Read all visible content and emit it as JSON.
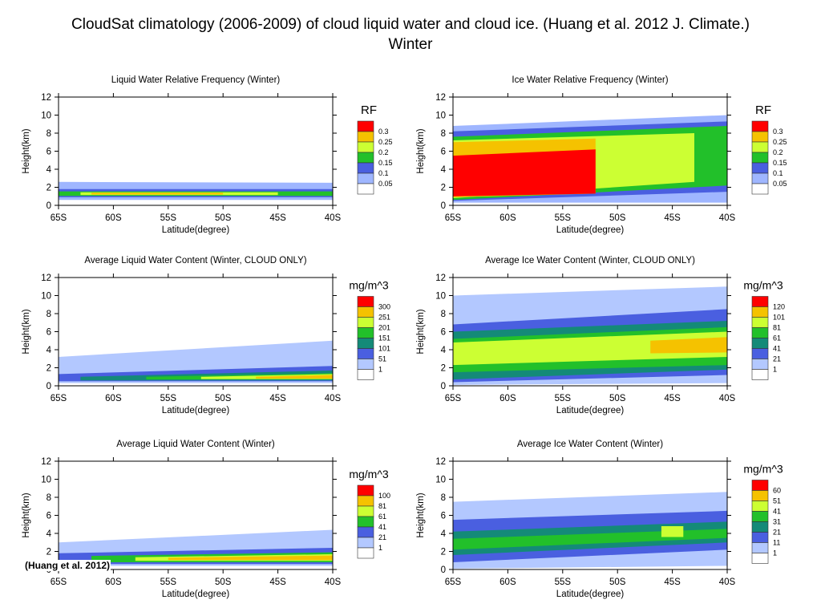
{
  "slide": {
    "title_line1": "CloudSat climatology (2006-2009) of cloud liquid water and cloud ice. (Huang et al. 2012 J. Climate.)",
    "title_line2": "Winter",
    "citation": "(Huang et al. 2012)"
  },
  "chart_data": [
    {
      "type": "heatmap",
      "title": "Liquid Water Relative Frequency (Winter)",
      "xlabel": "Latitude(degree)",
      "ylabel": "Height(km)",
      "x_ticks": [
        "65S",
        "60S",
        "55S",
        "50S",
        "45S",
        "40S"
      ],
      "x_range_deg": [
        -65,
        -40
      ],
      "y_ticks": [
        0,
        2,
        4,
        6,
        8,
        10,
        12
      ],
      "ylim": [
        0,
        12
      ],
      "colorbar": {
        "title": "RF",
        "labels": [
          "0.3",
          "0.25",
          "0.2",
          "0.15",
          "0.1",
          "0.05"
        ],
        "colors": [
          "#ff0000",
          "#f5c200",
          "#ccff33",
          "#22c02a",
          "#4a5fe0",
          "#9fb6ff",
          "#ffffff"
        ]
      },
      "layers": [
        {
          "level": 1,
          "x": [
            -65,
            -40
          ],
          "y0": [
            0.6,
            0.6
          ],
          "y1": [
            2.6,
            2.5
          ]
        },
        {
          "level": 2,
          "x": [
            -65,
            -40
          ],
          "y0": [
            0.9,
            0.9
          ],
          "y1": [
            1.8,
            1.8
          ]
        },
        {
          "level": 3,
          "x": [
            -65,
            -40
          ],
          "y0": [
            1.05,
            1.05
          ],
          "y1": [
            1.55,
            1.55
          ]
        },
        {
          "level": 4,
          "x": [
            -63,
            -45
          ],
          "y0": [
            1.15,
            1.15
          ],
          "y1": [
            1.45,
            1.45
          ]
        },
        {
          "level": 5,
          "x": [
            -62,
            -50
          ],
          "y0": [
            1.2,
            1.2
          ],
          "y1": [
            1.4,
            1.4
          ]
        }
      ]
    },
    {
      "type": "heatmap",
      "title": "Ice Water Relative Frequency (Winter)",
      "xlabel": "Latitude(degree)",
      "ylabel": "Height(km)",
      "x_ticks": [
        "65S",
        "60S",
        "55S",
        "50S",
        "45S",
        "40S"
      ],
      "x_range_deg": [
        -65,
        -40
      ],
      "y_ticks": [
        0,
        2,
        4,
        6,
        8,
        10,
        12
      ],
      "ylim": [
        0,
        12
      ],
      "colorbar": {
        "title": "RF",
        "labels": [
          "0.3",
          "0.25",
          "0.2",
          "0.15",
          "0.1",
          "0.05"
        ],
        "colors": [
          "#ff0000",
          "#f5c200",
          "#ccff33",
          "#22c02a",
          "#4a5fe0",
          "#9fb6ff",
          "#ffffff"
        ]
      },
      "layers": [
        {
          "level": 1,
          "x": [
            -65,
            -40
          ],
          "y0": [
            0.3,
            0.3
          ],
          "y1": [
            8.8,
            10.0
          ]
        },
        {
          "level": 2,
          "x": [
            -65,
            -40
          ],
          "y0": [
            0.5,
            1.5
          ],
          "y1": [
            8.2,
            9.3
          ]
        },
        {
          "level": 3,
          "x": [
            -65,
            -40
          ],
          "y0": [
            0.6,
            2.2
          ],
          "y1": [
            7.6,
            8.8
          ]
        },
        {
          "level": 4,
          "x": [
            -65,
            -43
          ],
          "y0": [
            0.8,
            2.6
          ],
          "y1": [
            7.2,
            8.0
          ]
        },
        {
          "level": 5,
          "x": [
            -65,
            -52
          ],
          "y0": [
            0.9,
            1.3
          ],
          "y1": [
            7.0,
            7.4
          ]
        },
        {
          "level": 6,
          "x": [
            -65,
            -52
          ],
          "y0": [
            1.0,
            1.3
          ],
          "y1": [
            5.5,
            6.2
          ]
        }
      ]
    },
    {
      "type": "heatmap",
      "title": "Average Liquid Water Content (Winter, CLOUD ONLY)",
      "xlabel": "Latitude(degree)",
      "ylabel": "Height(km)",
      "x_ticks": [
        "65S",
        "60S",
        "55S",
        "50S",
        "45S",
        "40S"
      ],
      "x_range_deg": [
        -65,
        -40
      ],
      "y_ticks": [
        0,
        2,
        4,
        6,
        8,
        10,
        12
      ],
      "ylim": [
        0,
        12
      ],
      "colorbar": {
        "title": "mg/m^3",
        "labels": [
          "300",
          "251",
          "201",
          "151",
          "101",
          "51",
          "1"
        ],
        "colors": [
          "#ff0000",
          "#f5c200",
          "#ccff33",
          "#22c02a",
          "#148a78",
          "#4a5fe0",
          "#b3c8ff",
          "#ffffff"
        ]
      },
      "layers": [
        {
          "level": 1,
          "x": [
            -65,
            -40
          ],
          "y0": [
            0.3,
            0.3
          ],
          "y1": [
            3.2,
            5.0
          ]
        },
        {
          "level": 2,
          "x": [
            -65,
            -40
          ],
          "y0": [
            0.5,
            0.5
          ],
          "y1": [
            1.3,
            2.2
          ]
        },
        {
          "level": 3,
          "x": [
            -63,
            -40
          ],
          "y0": [
            0.6,
            0.6
          ],
          "y1": [
            1.0,
            1.7
          ]
        },
        {
          "level": 4,
          "x": [
            -57,
            -40
          ],
          "y0": [
            0.7,
            0.7
          ],
          "y1": [
            1.0,
            1.4
          ]
        },
        {
          "level": 5,
          "x": [
            -52,
            -40
          ],
          "y0": [
            0.75,
            0.75
          ],
          "y1": [
            1.0,
            1.3
          ]
        },
        {
          "level": 6,
          "x": [
            -47,
            -40
          ],
          "y0": [
            0.8,
            0.8
          ],
          "y1": [
            1.0,
            1.2
          ]
        }
      ]
    },
    {
      "type": "heatmap",
      "title": "Average Ice Water Content (Winter, CLOUD ONLY)",
      "xlabel": "Latitude(degree)",
      "ylabel": "Height(km)",
      "x_ticks": [
        "65S",
        "60S",
        "55S",
        "50S",
        "45S",
        "40S"
      ],
      "x_range_deg": [
        -65,
        -40
      ],
      "y_ticks": [
        0,
        2,
        4,
        6,
        8,
        10,
        12
      ],
      "ylim": [
        0,
        12
      ],
      "colorbar": {
        "title": "mg/m^3",
        "labels": [
          "120",
          "101",
          "81",
          "61",
          "41",
          "21",
          "1"
        ],
        "colors": [
          "#ff0000",
          "#f5c200",
          "#ccff33",
          "#22c02a",
          "#148a78",
          "#4a5fe0",
          "#b3c8ff",
          "#ffffff"
        ]
      },
      "layers": [
        {
          "level": 1,
          "x": [
            -65,
            -40
          ],
          "y0": [
            0.1,
            0.3
          ],
          "y1": [
            10.0,
            11.0
          ]
        },
        {
          "level": 2,
          "x": [
            -65,
            -40
          ],
          "y0": [
            0.4,
            1.2
          ],
          "y1": [
            6.8,
            8.5
          ]
        },
        {
          "level": 3,
          "x": [
            -65,
            -40
          ],
          "y0": [
            0.7,
            1.8
          ],
          "y1": [
            6.0,
            7.2
          ]
        },
        {
          "level": 4,
          "x": [
            -65,
            -40
          ],
          "y0": [
            1.5,
            2.3
          ],
          "y1": [
            5.2,
            6.5
          ]
        },
        {
          "level": 5,
          "x": [
            -65,
            -40
          ],
          "y0": [
            2.3,
            3.2
          ],
          "y1": [
            4.8,
            6.0
          ]
        },
        {
          "level": 6,
          "x": [
            -47,
            -40
          ],
          "y0": [
            3.6,
            3.7
          ],
          "y1": [
            5.0,
            5.4
          ]
        }
      ]
    },
    {
      "type": "heatmap",
      "title": "Average Liquid Water Content (Winter)",
      "xlabel": "Latitude(degree)",
      "ylabel": "Height(km)",
      "x_ticks": [
        "65S",
        "60S",
        "55S",
        "50S",
        "45S",
        "40S"
      ],
      "x_range_deg": [
        -65,
        -40
      ],
      "y_ticks": [
        0,
        2,
        4,
        6,
        8,
        10,
        12
      ],
      "ylim": [
        0,
        12
      ],
      "colorbar": {
        "title": "mg/m^3",
        "labels": [
          "100",
          "81",
          "61",
          "41",
          "21",
          "1"
        ],
        "colors": [
          "#ff0000",
          "#f5c200",
          "#ccff33",
          "#22c02a",
          "#4a5fe0",
          "#b3c8ff",
          "#ffffff"
        ]
      },
      "layers": [
        {
          "level": 1,
          "x": [
            -65,
            -40
          ],
          "y0": [
            0.4,
            0.4
          ],
          "y1": [
            3.0,
            4.4
          ]
        },
        {
          "level": 2,
          "x": [
            -65,
            -40
          ],
          "y0": [
            0.6,
            0.6
          ],
          "y1": [
            1.8,
            2.4
          ]
        },
        {
          "level": 3,
          "x": [
            -62,
            -40
          ],
          "y0": [
            0.8,
            0.8
          ],
          "y1": [
            1.5,
            1.9
          ]
        },
        {
          "level": 4,
          "x": [
            -58,
            -40
          ],
          "y0": [
            0.95,
            0.95
          ],
          "y1": [
            1.35,
            1.7
          ]
        },
        {
          "level": 5,
          "x": [
            -55,
            -40
          ],
          "y0": [
            1.05,
            1.05
          ],
          "y1": [
            1.3,
            1.55
          ]
        }
      ]
    },
    {
      "type": "heatmap",
      "title": "Average Ice Water Content (Winter)",
      "xlabel": "Latitude(degree)",
      "ylabel": "Height(km)",
      "x_ticks": [
        "65S",
        "60S",
        "55S",
        "50S",
        "45S",
        "40S"
      ],
      "x_range_deg": [
        -65,
        -40
      ],
      "y_ticks": [
        0,
        2,
        4,
        6,
        8,
        10,
        12
      ],
      "ylim": [
        0,
        12
      ],
      "colorbar": {
        "title": "mg/m^3",
        "labels": [
          "60",
          "51",
          "41",
          "31",
          "21",
          "11",
          "1"
        ],
        "colors": [
          "#ff0000",
          "#f5c200",
          "#ccff33",
          "#22c02a",
          "#148a78",
          "#4a5fe0",
          "#b3c8ff",
          "#ffffff"
        ]
      },
      "layers": [
        {
          "level": 1,
          "x": [
            -65,
            -40
          ],
          "y0": [
            0.1,
            0.4
          ],
          "y1": [
            7.5,
            8.6
          ]
        },
        {
          "level": 2,
          "x": [
            -65,
            -40
          ],
          "y0": [
            0.8,
            2.2
          ],
          "y1": [
            5.5,
            6.5
          ]
        },
        {
          "level": 3,
          "x": [
            -65,
            -40
          ],
          "y0": [
            1.6,
            3.0
          ],
          "y1": [
            4.2,
            5.3
          ]
        },
        {
          "level": 4,
          "x": [
            -65,
            -40
          ],
          "y0": [
            2.2,
            3.5
          ],
          "y1": [
            3.4,
            4.5
          ]
        },
        {
          "level": 5,
          "x": [
            -46,
            -44
          ],
          "y0": [
            3.6,
            3.6
          ],
          "y1": [
            4.8,
            4.8
          ]
        }
      ]
    }
  ]
}
